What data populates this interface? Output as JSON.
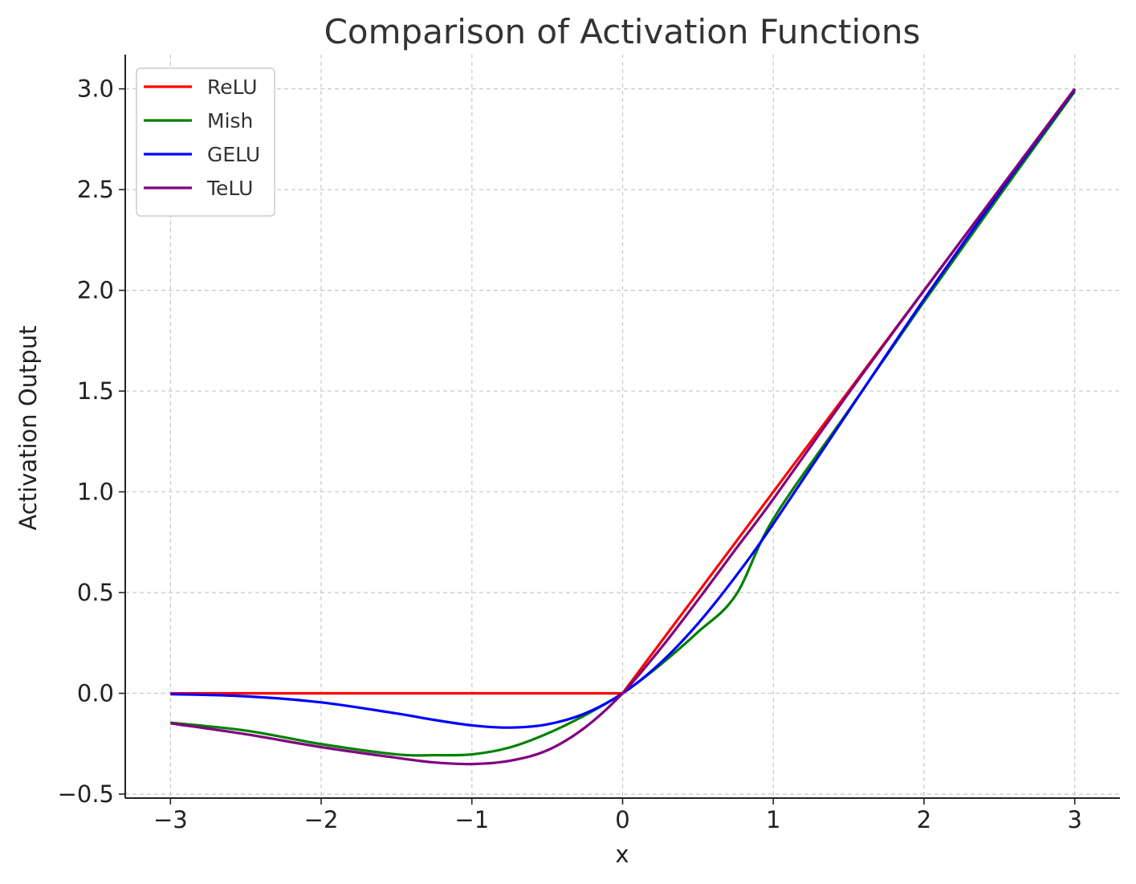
{
  "chart_data": {
    "type": "line",
    "title": "Comparison of Activation Functions",
    "xlabel": "x",
    "ylabel": "Activation Output",
    "xlim": [
      -3.3,
      3.3
    ],
    "ylim": [
      -0.52,
      3.17
    ],
    "x_ticks": [
      -3,
      -2,
      -1,
      0,
      1,
      2,
      3
    ],
    "x_tick_labels": [
      "−3",
      "−2",
      "−1",
      "0",
      "1",
      "2",
      "3"
    ],
    "y_ticks": [
      -0.5,
      0.0,
      0.5,
      1.0,
      1.5,
      2.0,
      2.5,
      3.0
    ],
    "y_tick_labels": [
      "−0.5",
      "0.0",
      "0.5",
      "1.0",
      "1.5",
      "2.0",
      "2.5",
      "3.0"
    ],
    "grid": true,
    "legend_position": "top-left",
    "x": [
      -3.0,
      -2.5,
      -2.0,
      -1.5,
      -1.25,
      -1.0,
      -0.75,
      -0.5,
      -0.25,
      0.0,
      0.25,
      0.5,
      0.75,
      1.0,
      1.5,
      2.0,
      2.5,
      3.0
    ],
    "series": [
      {
        "name": "ReLU",
        "color": "#ff0000",
        "values": [
          0,
          0,
          0,
          0,
          0,
          0,
          0,
          0,
          0,
          0,
          0.25,
          0.5,
          0.75,
          1.0,
          1.5,
          2.0,
          2.5,
          3.0
        ]
      },
      {
        "name": "Mish",
        "color": "#008000",
        "values": [
          -0.146,
          -0.185,
          -0.252,
          -0.303,
          -0.307,
          -0.303,
          -0.269,
          -0.2,
          -0.109,
          0,
          0.141,
          0.304,
          0.486,
          0.865,
          1.404,
          1.944,
          2.469,
          2.987
        ]
      },
      {
        "name": "GELU",
        "color": "#0000ff",
        "values": [
          -0.004,
          -0.015,
          -0.045,
          -0.1,
          -0.132,
          -0.159,
          -0.17,
          -0.154,
          -0.1,
          0,
          0.15,
          0.346,
          0.58,
          0.841,
          1.4,
          1.955,
          2.485,
          2.996
        ]
      },
      {
        "name": "TeLU",
        "color": "#800080",
        "values": [
          -0.149,
          -0.203,
          -0.267,
          -0.32,
          -0.343,
          -0.351,
          -0.335,
          -0.283,
          -0.17,
          0,
          0.22,
          0.463,
          0.715,
          0.964,
          1.49,
          1.999,
          2.5,
          3.0
        ]
      }
    ]
  }
}
